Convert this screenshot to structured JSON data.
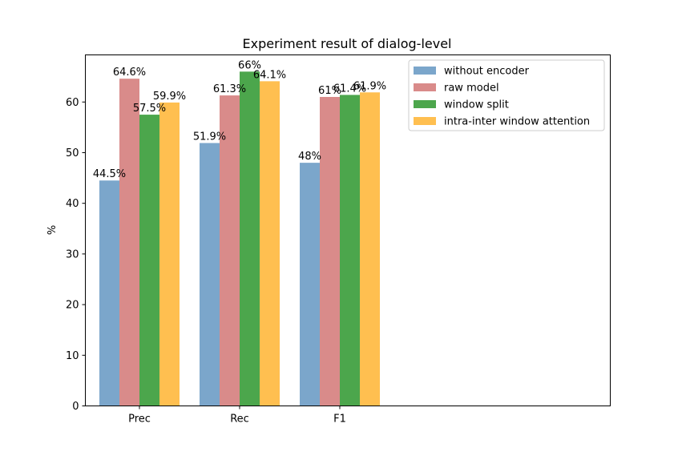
{
  "chart_data": {
    "type": "bar",
    "title": "Experiment result of dialog-level",
    "xlabel": "",
    "ylabel": "%",
    "categories": [
      "Prec",
      "Rec",
      "F1"
    ],
    "ylim": [
      0,
      69.3
    ],
    "yticks": [
      0,
      10,
      20,
      30,
      40,
      50,
      60
    ],
    "grid": false,
    "legend_position": "top-right",
    "series": [
      {
        "name": "without encoder",
        "color": "#7ba6cb",
        "values": [
          44.5,
          51.9,
          48
        ],
        "labels": [
          "44.5%",
          "51.9%",
          "48%"
        ]
      },
      {
        "name": "raw model",
        "color": "#d98b8a",
        "values": [
          64.6,
          61.3,
          61
        ],
        "labels": [
          "64.6%",
          "61.3%",
          "61%"
        ]
      },
      {
        "name": "window split",
        "color": "#4ca64c",
        "values": [
          57.5,
          66,
          61.4
        ],
        "labels": [
          "57.5%",
          "66%",
          "61.4%"
        ]
      },
      {
        "name": "intra-inter window attention",
        "color": "#ffbf50",
        "values": [
          59.9,
          64.1,
          61.9
        ],
        "labels": [
          "59.9%",
          "64.1%",
          "61.9%"
        ]
      }
    ]
  }
}
